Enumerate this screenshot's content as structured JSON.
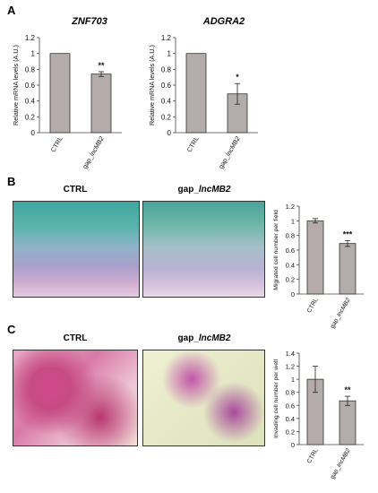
{
  "panels": {
    "A": {
      "letter": "A",
      "charts": [
        {
          "id": "A1",
          "title": "ZNF703"
        },
        {
          "id": "A2",
          "title": "ADGRA2"
        }
      ]
    },
    "B": {
      "letter": "B",
      "image_titles": {
        "ctrl": "CTRL",
        "gap_prefix": "gap_",
        "gap_italic": "lncMB2"
      }
    },
    "C": {
      "letter": "C",
      "image_titles": {
        "ctrl": "CTRL",
        "gap_prefix": "gap_",
        "gap_italic": "lncMB2"
      }
    }
  },
  "chart_data": [
    {
      "id": "A1",
      "type": "bar",
      "title": "ZNF703",
      "ylabel": "Relative mRNA levels (A.U.)",
      "categories": [
        "CTRL",
        "gap_lncMB2"
      ],
      "values": [
        1.0,
        0.74
      ],
      "errors": [
        0,
        0.03
      ],
      "significance": [
        "",
        "**"
      ],
      "ylim": [
        0,
        1.2
      ],
      "yticks": [
        "0",
        "0.2",
        "0.4",
        "0.6",
        "0.8",
        "1",
        "1.2"
      ],
      "bar_color": "#b3acab",
      "grid": false
    },
    {
      "id": "A2",
      "type": "bar",
      "title": "ADGRA2",
      "ylabel": "Relative mRNA levels (A.U.)",
      "categories": [
        "CTRL",
        "gap_lncMB2"
      ],
      "values": [
        1.0,
        0.49
      ],
      "errors": [
        0,
        0.13
      ],
      "significance": [
        "",
        "*"
      ],
      "ylim": [
        0,
        1.2
      ],
      "yticks": [
        "0",
        "0.2",
        "0.4",
        "0.6",
        "0.8",
        "1",
        "1.2"
      ],
      "bar_color": "#b3acab",
      "grid": false
    },
    {
      "id": "B",
      "type": "bar",
      "ylabel": "Migrated cell number per field",
      "categories": [
        "CTRL",
        "gap_lncMB2"
      ],
      "values": [
        1.0,
        0.69
      ],
      "errors": [
        0.03,
        0.04
      ],
      "significance": [
        "",
        "***"
      ],
      "ylim": [
        0,
        1.2
      ],
      "yticks": [
        "0",
        "0.2",
        "0.4",
        "0.6",
        "0.8",
        "1",
        "1.2"
      ],
      "bar_color": "#b3acab",
      "grid": false
    },
    {
      "id": "C",
      "type": "bar",
      "ylabel": "Invading cell number per well",
      "categories": [
        "CTRL",
        "gap_lncMB2"
      ],
      "values": [
        1.0,
        0.67
      ],
      "errors": [
        0.2,
        0.07
      ],
      "significance": [
        "",
        "**"
      ],
      "ylim": [
        0,
        1.4
      ],
      "yticks": [
        "0",
        "0.2",
        "0.4",
        "0.6",
        "0.8",
        "1",
        "1.2",
        "1.4"
      ],
      "bar_color": "#b3acab",
      "grid": false
    }
  ]
}
